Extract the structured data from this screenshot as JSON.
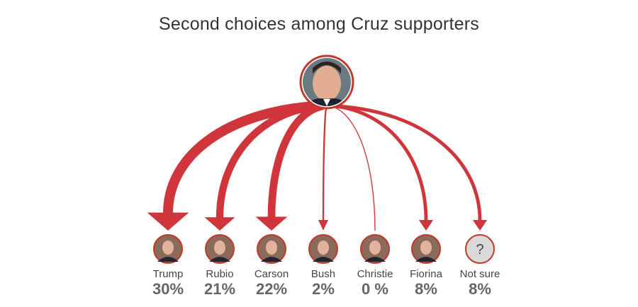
{
  "chart_data": {
    "type": "flow",
    "title": "Second choices among Cruz supporters",
    "source_name": "Cruz",
    "unit": "%",
    "colors": {
      "arrow": "#d1353c",
      "ring": "#c0392b",
      "unknown_face": "#d9d9d9"
    },
    "categories": [
      "Trump",
      "Rubio",
      "Carson",
      "Bush",
      "Christie",
      "Fiorina",
      "Not sure"
    ],
    "values": [
      30,
      21,
      22,
      2,
      0,
      8,
      8
    ],
    "labels": [
      "30%",
      "21%",
      "22%",
      "2%",
      "0 %",
      "8%",
      "8%"
    ],
    "unknown_symbol": "?"
  }
}
